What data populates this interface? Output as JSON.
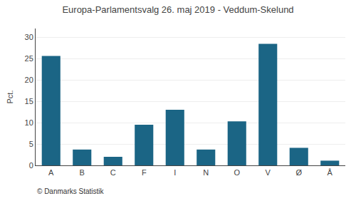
{
  "chart_data": {
    "type": "bar",
    "title": "Europa-Parlamentsvalg 26. maj 2019 - Veddum-Skelund",
    "ylabel": "Pct.",
    "categories": [
      "A",
      "B",
      "C",
      "F",
      "I",
      "N",
      "O",
      "V",
      "Ø",
      "Å"
    ],
    "values": [
      25.6,
      3.7,
      2.0,
      9.5,
      13.0,
      3.7,
      10.3,
      28.4,
      4.1,
      1.1
    ],
    "color": "#1b6585",
    "ylim": [
      0,
      32
    ],
    "yticks": [
      0,
      5,
      10,
      15,
      20,
      25,
      30
    ],
    "grid": true,
    "annotations": [
      "© Danmarks Statistik"
    ]
  }
}
